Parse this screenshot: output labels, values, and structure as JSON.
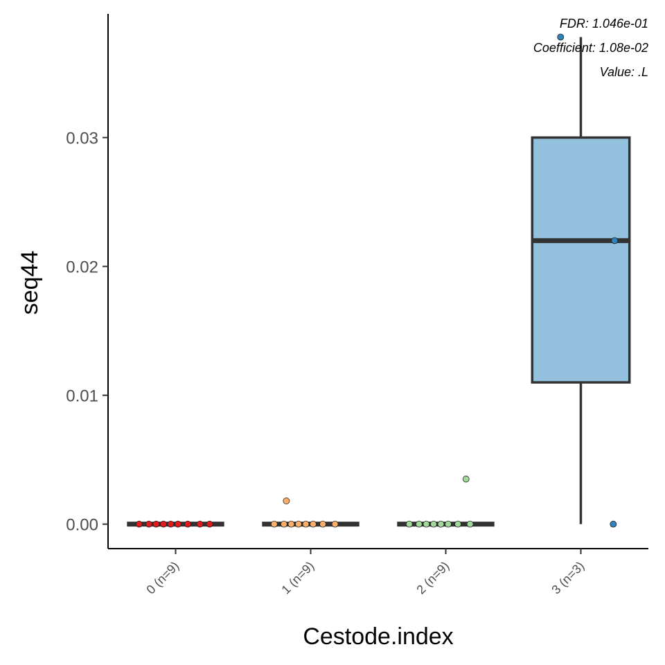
{
  "chart_data": {
    "type": "box",
    "title": "",
    "xlabel": "Cestode.index",
    "ylabel": "seq44",
    "ylim": [
      -0.0019,
      0.0396
    ],
    "yticks": [
      0.0,
      0.01,
      0.02,
      0.03
    ],
    "ytick_labels": [
      "0.00",
      "0.01",
      "0.02",
      "0.03"
    ],
    "grid": false,
    "legend": "none",
    "annotations": [
      "FDR: 1.046e-01",
      "Coefficient: 1.08e-02",
      "Value: .L"
    ],
    "categories": [
      "0 (n=9)",
      "1 (n=9)",
      "2 (n=9)",
      "3 (n=3)"
    ],
    "boxes": [
      {
        "category": "0 (n=9)",
        "fill": "#c0392b",
        "point_color": "#e31a1c",
        "min": 0,
        "q1": 0,
        "median": 0,
        "q3": 0,
        "max": 0,
        "points": [
          0,
          0,
          0,
          0,
          0,
          0,
          0,
          0,
          0
        ]
      },
      {
        "category": "1 (n=9)",
        "fill": "#f5a85b",
        "point_color": "#fdae6b",
        "min": 0,
        "q1": 0,
        "median": 0,
        "q3": 0,
        "max": 0,
        "points": [
          0,
          0,
          0,
          0,
          0,
          0,
          0,
          0,
          0.0018
        ]
      },
      {
        "category": "2 (n=9)",
        "fill": "#a8dca0",
        "point_color": "#a1d99b",
        "min": 0,
        "q1": 0,
        "median": 0,
        "q3": 0,
        "max": 0,
        "points": [
          0,
          0,
          0,
          0,
          0,
          0,
          0,
          0,
          0.0035
        ]
      },
      {
        "category": "3 (n=3)",
        "fill": "#92c0dd",
        "point_color": "#3182bd",
        "min": 0,
        "q1": 0.011,
        "median": 0.022,
        "q3": 0.03,
        "max": 0.0378,
        "points": [
          0.0378,
          0.022,
          0
        ]
      }
    ]
  }
}
